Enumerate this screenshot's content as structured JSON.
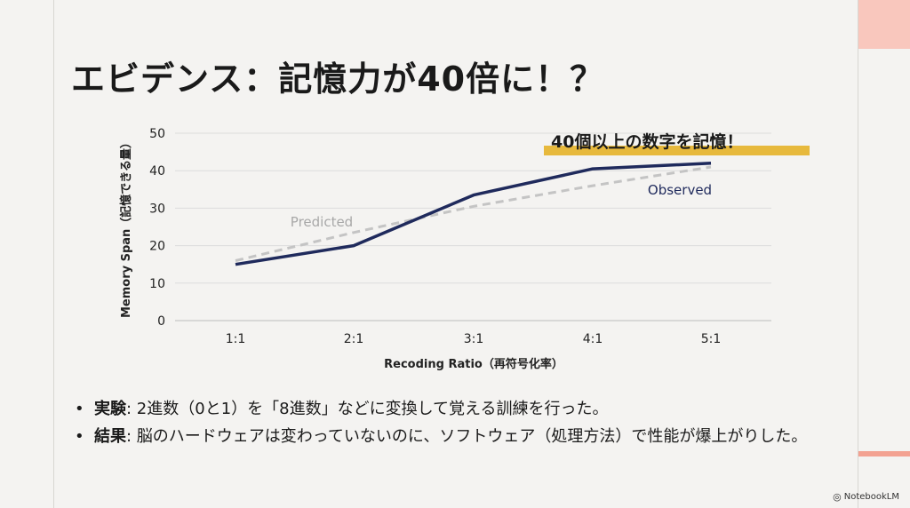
{
  "slide": {
    "title": "エビデンス：記憶力が40倍に！？",
    "bullets": [
      {
        "label": "実験",
        "text": ": 2進数（0と1）を「8進数」などに変換して覚える訓練を行った。"
      },
      {
        "label": "結果",
        "text": ": 脳のハードウェアは変わっていないのに、ソフトウェア（処理方法）で性能が爆上がりした。"
      }
    ],
    "brand": "NotebookLM",
    "brand_icon": "notebooklm-logo-icon"
  },
  "colors": {
    "background": "#f4f3f1",
    "observed": "#1f2a5c",
    "predicted": "#c4c4c4",
    "highlight": "#e7b93d",
    "accent": "#f9c7bd"
  },
  "chart_data": {
    "type": "line",
    "categories": [
      "1:1",
      "2:1",
      "3:1",
      "4:1",
      "5:1"
    ],
    "xlabel": "Recoding Ratio（再符号化率）",
    "ylabel": "Memory Span（記憶できる量）",
    "ylim": [
      0,
      50
    ],
    "yticks": [
      0,
      10,
      20,
      30,
      40,
      50
    ],
    "grid": true,
    "series": [
      {
        "name": "Observed",
        "style": "solid",
        "values": [
          15,
          20,
          33.5,
          40.5,
          42
        ]
      },
      {
        "name": "Predicted",
        "style": "dashed",
        "values": [
          16,
          23.5,
          30.5,
          36,
          41
        ]
      }
    ],
    "annotation": "40個以上の数字を記憶！"
  }
}
